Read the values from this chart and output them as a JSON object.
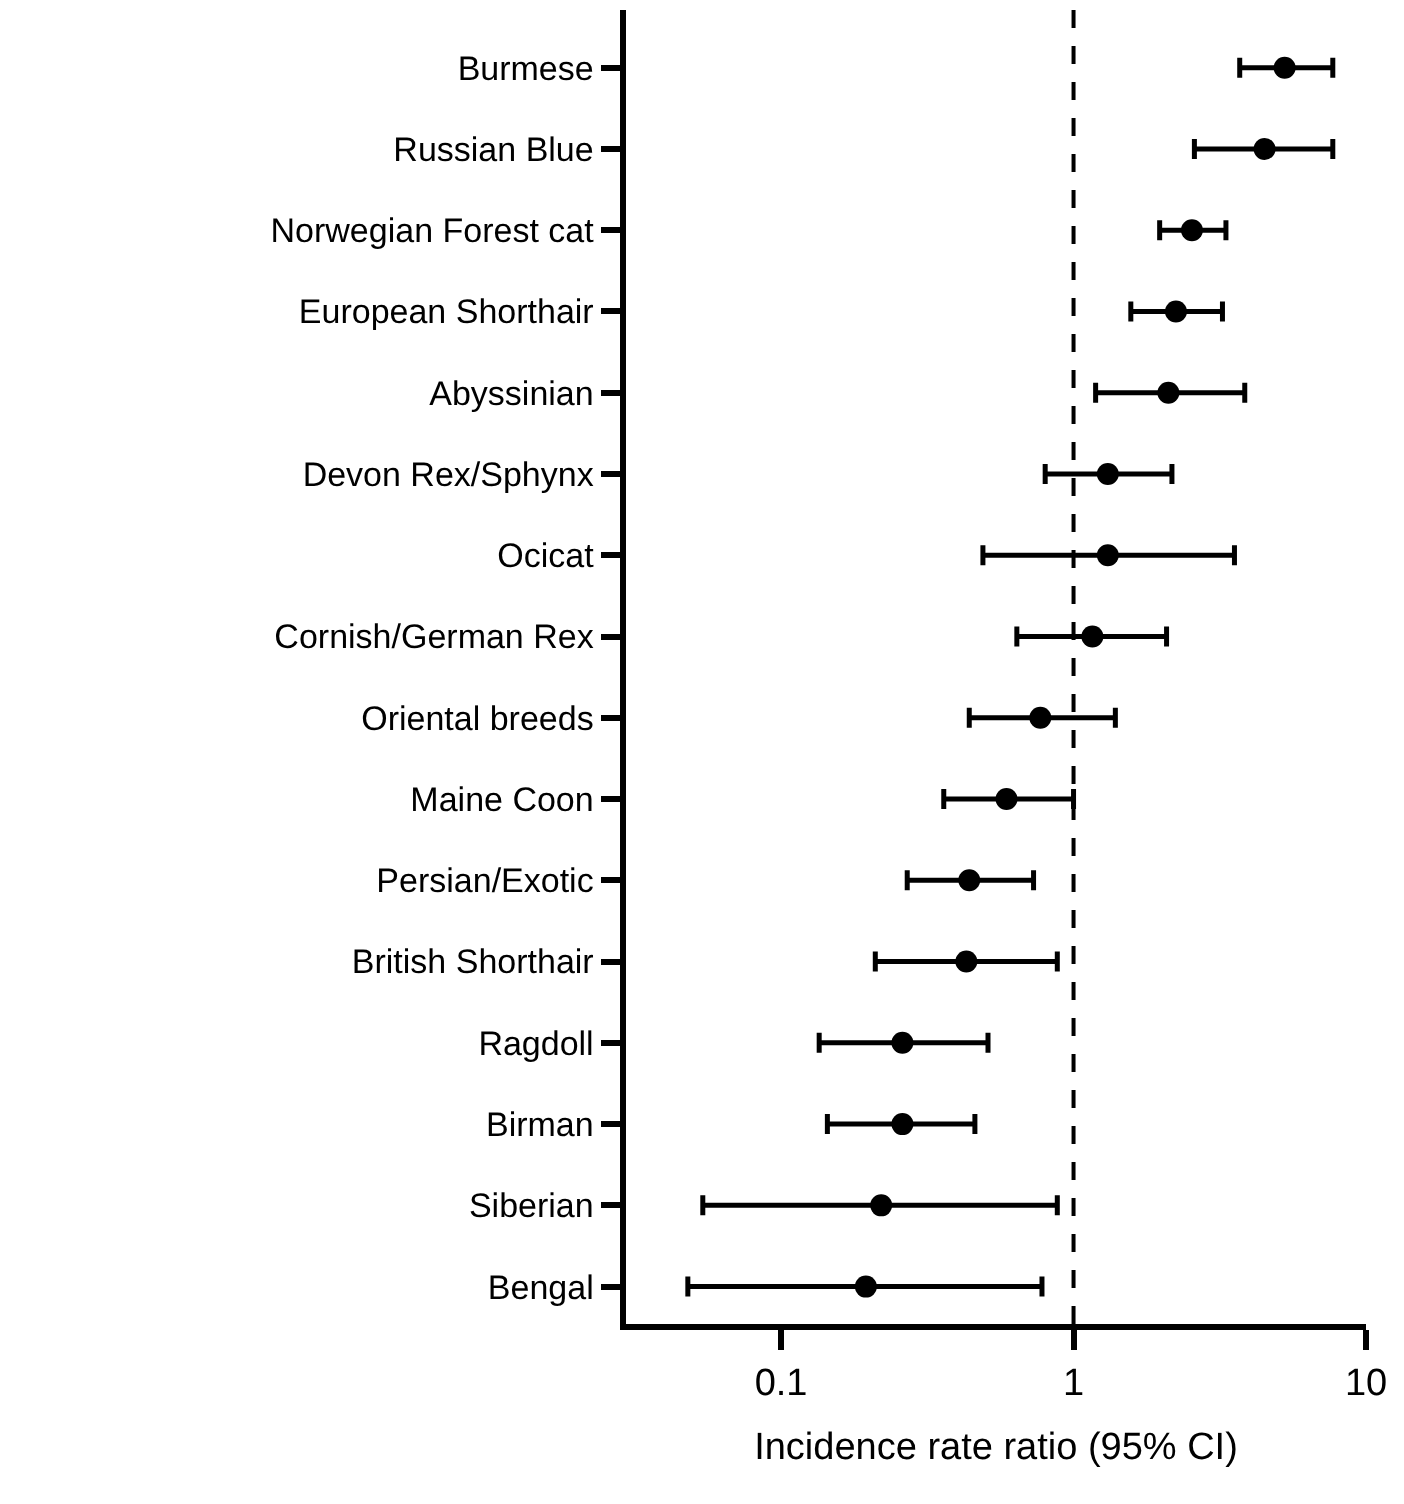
{
  "chart_data": {
    "type": "scatter",
    "orientation": "horizontal",
    "xlabel": "Incidence rate ratio (95% CI)",
    "categories": [
      "Burmese",
      "Russian Blue",
      "Norwegian Forest cat",
      "European Shorthair",
      "Abyssinian",
      "Devon Rex/Sphynx",
      "Ocicat",
      "Cornish/German Rex",
      "Oriental breeds",
      "Maine Coon",
      "Persian/Exotic",
      "British Shorthair",
      "Ragdoll",
      "Birman",
      "Siberian",
      "Bengal"
    ],
    "values": [
      5.27,
      4.5,
      2.54,
      2.24,
      2.11,
      1.31,
      1.31,
      1.16,
      0.77,
      0.59,
      0.44,
      0.43,
      0.26,
      0.26,
      0.22,
      0.195
    ],
    "errors": [
      [
        3.7,
        7.7
      ],
      [
        2.59,
        7.7
      ],
      [
        1.97,
        3.32
      ],
      [
        1.57,
        3.23
      ],
      [
        1.19,
        3.85
      ],
      [
        0.8,
        2.17
      ],
      [
        0.49,
        3.55
      ],
      [
        0.64,
        2.08
      ],
      [
        0.44,
        1.39
      ],
      [
        0.36,
        1.0
      ],
      [
        0.27,
        0.73
      ],
      [
        0.21,
        0.88
      ],
      [
        0.135,
        0.51
      ],
      [
        0.144,
        0.46
      ],
      [
        0.054,
        0.88
      ],
      [
        0.048,
        0.78
      ]
    ],
    "color": "#000000",
    "marker": "circle",
    "log": "x",
    "legend": false,
    "xlim": [
      0.0295,
      10
    ],
    "xticks": [
      0.1,
      1,
      10
    ],
    "ref_lines": [
      {
        "axis": "x",
        "value": 1,
        "line_style": "dashed",
        "color": "#000000"
      }
    ]
  }
}
